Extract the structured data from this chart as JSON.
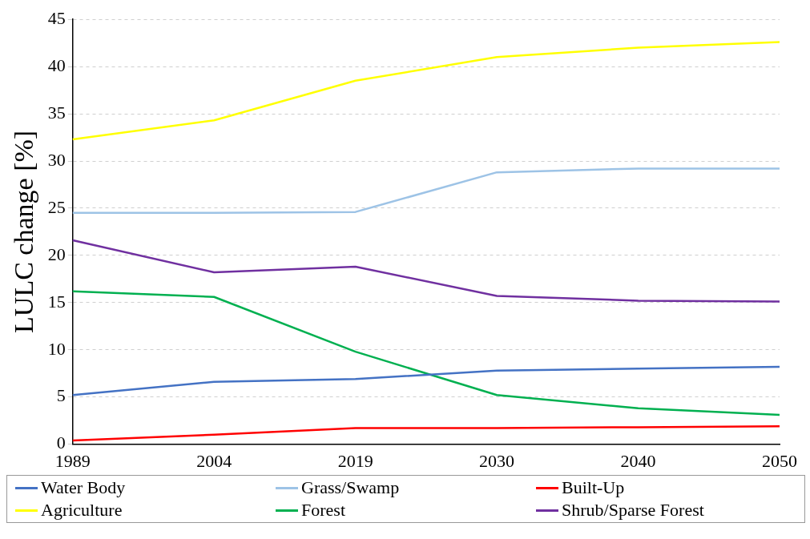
{
  "chart_data": {
    "type": "line",
    "ylabel": "LULC change [%]",
    "categories": [
      "1989",
      "2004",
      "2019",
      "2030",
      "2040",
      "2050"
    ],
    "ylim": [
      0,
      45
    ],
    "yticks": [
      0,
      5,
      10,
      15,
      20,
      25,
      30,
      35,
      40,
      45
    ],
    "grid": "y",
    "legend": "bottom",
    "marker": "none",
    "line_style": "solid",
    "series": [
      {
        "name": "Water Body",
        "color": "#4472c4",
        "values": [
          5.2,
          6.6,
          6.9,
          7.8,
          8.0,
          8.2
        ]
      },
      {
        "name": "Grass/Swamp",
        "color": "#9dc3e6",
        "values": [
          24.5,
          24.5,
          24.6,
          28.8,
          29.2,
          29.2
        ]
      },
      {
        "name": "Built-Up",
        "color": "#ff0000",
        "values": [
          0.4,
          1.0,
          1.7,
          1.7,
          1.8,
          1.9
        ]
      },
      {
        "name": "Agriculture",
        "color": "#ffff00",
        "values": [
          32.3,
          34.3,
          38.5,
          41.0,
          42.0,
          42.6
        ]
      },
      {
        "name": "Forest",
        "color": "#00b050",
        "values": [
          16.2,
          15.6,
          9.8,
          5.2,
          3.8,
          3.1
        ]
      },
      {
        "name": "Shrub/Sparse Forest",
        "color": "#7030a0",
        "values": [
          21.6,
          18.2,
          18.8,
          15.7,
          15.2,
          15.1
        ]
      }
    ]
  }
}
